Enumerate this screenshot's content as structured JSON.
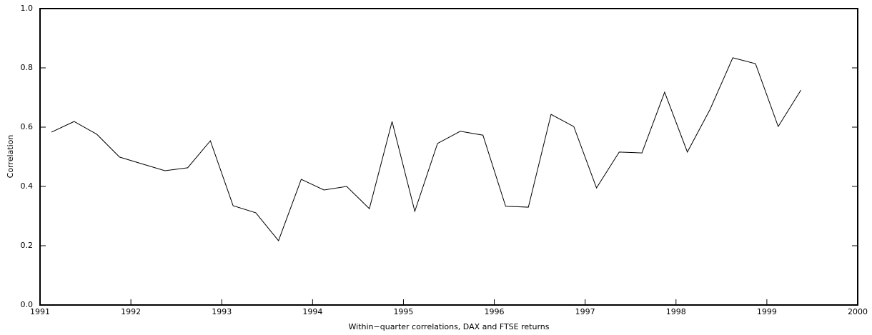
{
  "chart_data": {
    "type": "line",
    "xlabel": "Within−quarter correlations, DAX and FTSE returns",
    "ylabel": "Correlation",
    "x": [
      1991.125,
      1991.375,
      1991.625,
      1991.875,
      1992.125,
      1992.375,
      1992.625,
      1992.875,
      1993.125,
      1993.375,
      1993.625,
      1993.875,
      1994.125,
      1994.375,
      1994.625,
      1994.875,
      1995.125,
      1995.375,
      1995.625,
      1995.875,
      1996.125,
      1996.375,
      1996.625,
      1996.875,
      1997.125,
      1997.375,
      1997.625,
      1997.875,
      1998.125,
      1998.375,
      1998.625,
      1998.875,
      1999.125,
      1999.375
    ],
    "series": [
      {
        "color": "#000000",
        "values": [
          0.583,
          0.619,
          0.576,
          0.499,
          0.476,
          0.453,
          0.463,
          0.554,
          0.335,
          0.311,
          0.217,
          0.424,
          0.388,
          0.4,
          0.325,
          0.619,
          0.316,
          0.545,
          0.586,
          0.573,
          0.333,
          0.33,
          0.643,
          0.602,
          0.395,
          0.516,
          0.513,
          0.718,
          0.516,
          0.66,
          0.834,
          0.814,
          0.602,
          0.725
        ]
      }
    ],
    "xlim": [
      1991,
      2000
    ],
    "xticks": [
      1991,
      1992,
      1993,
      1994,
      1995,
      1996,
      1997,
      1998,
      1999,
      2000
    ],
    "ylim": [
      0,
      1
    ],
    "yticks": [
      {
        "value": 0,
        "label": "0.0"
      },
      0.2,
      0.4,
      0.6,
      0.8,
      {
        "value": 1,
        "label": "1.0"
      }
    ],
    "grid": false
  }
}
